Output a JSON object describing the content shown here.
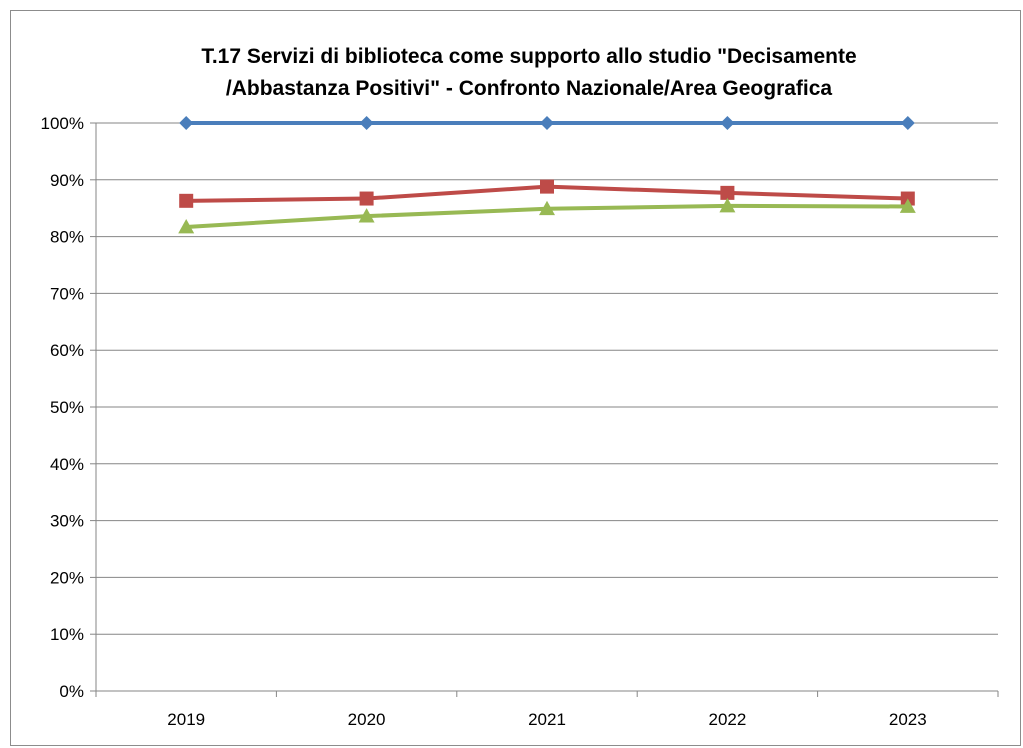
{
  "chart_data": {
    "type": "line",
    "title_lines": [
      "T.17 Servizi di biblioteca come supporto allo studio \"Decisamente",
      "/Abbastanza Positivi\" - Confronto Nazionale/Area Geografica"
    ],
    "categories": [
      "2019",
      "2020",
      "2021",
      "2022",
      "2023"
    ],
    "y_ticks": [
      "0%",
      "10%",
      "20%",
      "30%",
      "40%",
      "50%",
      "60%",
      "70%",
      "80%",
      "90%",
      "100%"
    ],
    "ylim": [
      0,
      100
    ],
    "grid": true,
    "legend": "none",
    "series": [
      {
        "color": "#4a7ebb",
        "marker": "diamond",
        "values": [
          100,
          100,
          100,
          100,
          100
        ]
      },
      {
        "color": "#be4b48",
        "marker": "square",
        "values": [
          86.3,
          86.7,
          88.8,
          87.7,
          86.7
        ]
      },
      {
        "color": "#98b954",
        "marker": "triangle",
        "values": [
          81.7,
          83.6,
          84.9,
          85.4,
          85.3
        ]
      }
    ]
  }
}
